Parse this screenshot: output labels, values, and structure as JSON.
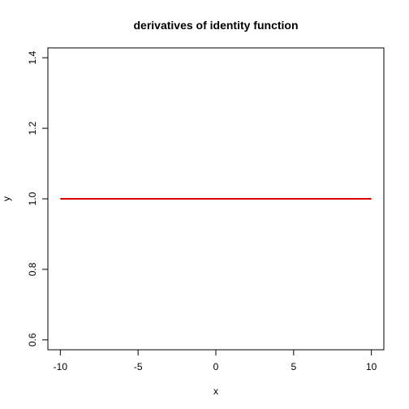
{
  "chart_data": {
    "type": "line",
    "title": "derivatives of identity function",
    "xlabel": "x",
    "ylabel": "y",
    "xlim": [
      -10.8,
      10.8
    ],
    "ylim": [
      0.572,
      1.428
    ],
    "x_ticks": [
      -10,
      -5,
      0,
      5,
      10
    ],
    "x_tick_labels": [
      "-10",
      "-5",
      "0",
      "5",
      "10"
    ],
    "y_ticks": [
      0.6,
      0.8,
      1.0,
      1.2,
      1.4
    ],
    "y_tick_labels": [
      "0.6",
      "0.8",
      "1.0",
      "1.2",
      "1.4"
    ],
    "grid": false,
    "series": [
      {
        "x": [
          -10,
          10
        ],
        "y": [
          1,
          1
        ],
        "color": "#dd0000"
      }
    ]
  }
}
